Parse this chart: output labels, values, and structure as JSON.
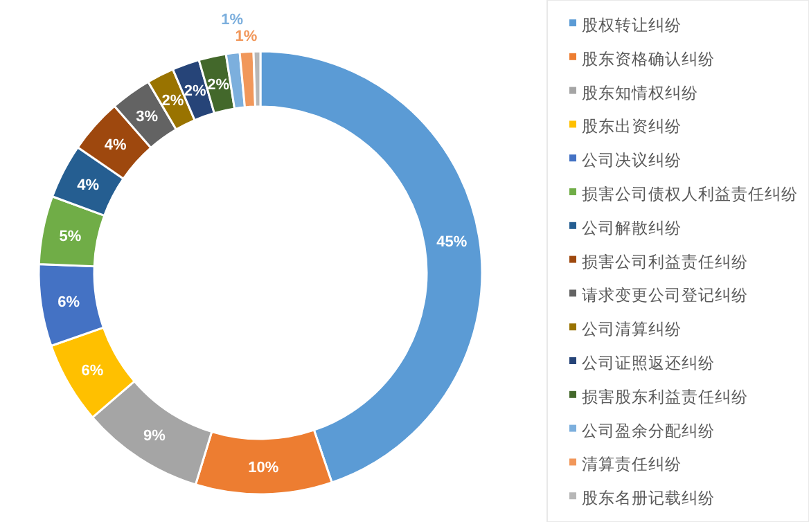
{
  "chart_data": {
    "type": "donut",
    "categories": [
      "股权转让纠纷",
      "股东资格确认纠纷",
      "股东知情权纠纷",
      "股东出资纠纷",
      "公司决议纠纷",
      "损害公司债权人利益责任纠纷",
      "公司解散纠纷",
      "损害公司利益责任纠纷",
      "请求变更公司登记纠纷",
      "公司清算纠纷",
      "公司证照返还纠纷",
      "损害股东利益责任纠纷",
      "公司盈余分配纠纷",
      "清算责任纠纷",
      "股东名册记载纠纷"
    ],
    "values": [
      45,
      10,
      9,
      6,
      6,
      5,
      4,
      4,
      3,
      2,
      2,
      2,
      1,
      1,
      0.5
    ],
    "value_labels": [
      "45%",
      "10%",
      "9%",
      "6%",
      "6%",
      "5%",
      "4%",
      "4%",
      "3%",
      "2%",
      "2%",
      "2%",
      "1%",
      "1%",
      null
    ],
    "colors": [
      "#5b9bd5",
      "#ed7d31",
      "#a5a5a5",
      "#ffc000",
      "#4472c4",
      "#70ad47",
      "#255e91",
      "#9e480e",
      "#636363",
      "#997300",
      "#264478",
      "#43682b",
      "#7cafdd",
      "#f1975a",
      "#b7b7b7"
    ],
    "legend": "right"
  }
}
